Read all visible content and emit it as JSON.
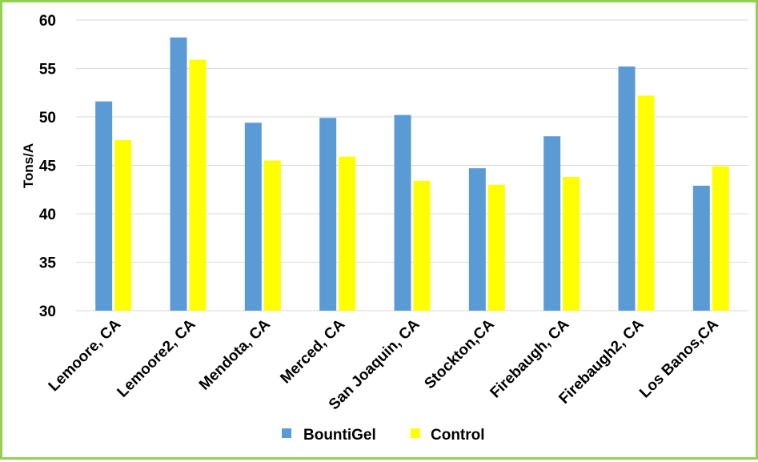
{
  "chart_data": {
    "type": "bar",
    "title": "",
    "xlabel": "",
    "ylabel": "Tons/A",
    "ylim": [
      30,
      60
    ],
    "yticks": [
      30,
      35,
      40,
      45,
      50,
      55,
      60
    ],
    "grid": true,
    "legend_position": "bottom",
    "categories": [
      "Lemoore, CA",
      "Lemoore2, CA",
      "Mendota, CA",
      "Merced, CA",
      "San Joaquin, CA",
      "Stockton,CA",
      "Firebaugh, CA",
      "Firebaugh2, CA",
      "Los Banos,CA"
    ],
    "series": [
      {
        "name": "BountiGel",
        "color": "#5B9BD5",
        "values": [
          51.6,
          58.2,
          49.4,
          49.9,
          50.2,
          44.7,
          48.0,
          55.2,
          42.9
        ]
      },
      {
        "name": "Control",
        "color": "#FFFF00",
        "values": [
          47.6,
          55.9,
          45.5,
          45.9,
          43.4,
          43.0,
          43.8,
          52.2,
          44.9
        ]
      }
    ]
  },
  "frame_color": "#92D050",
  "grid_color": "#D9D9D9"
}
